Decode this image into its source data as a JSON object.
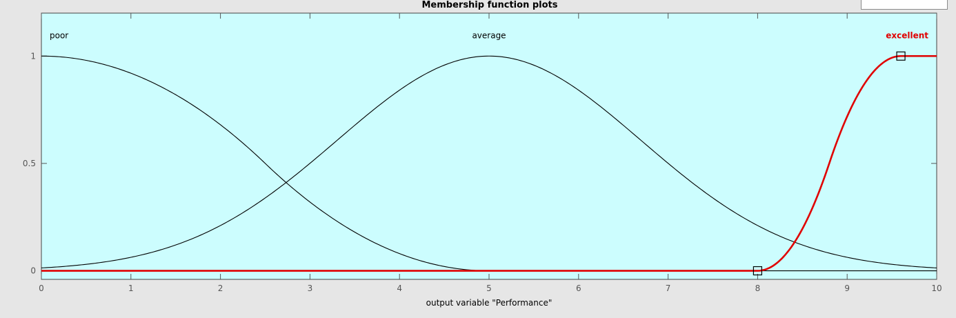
{
  "title": "Membership function plots",
  "colors": {
    "axes_background": "#ccfdfe",
    "figure_background": "#e6e6e6",
    "curve": "#000000",
    "selected_curve": "#e00000"
  },
  "chart_data": {
    "type": "line",
    "title": "Membership function plots",
    "xlabel": "output variable \"Performance\"",
    "ylabel": "",
    "xlim": [
      0,
      10
    ],
    "ylim": [
      -0.04,
      1.2
    ],
    "xticks": [
      "0",
      "1",
      "2",
      "3",
      "4",
      "5",
      "6",
      "7",
      "8",
      "9",
      "10"
    ],
    "yticks": [
      "0",
      "0.5",
      "1"
    ],
    "ytick_values": [
      0,
      0.5,
      1
    ],
    "grid": false,
    "series": [
      {
        "name": "poor",
        "shape": "z-shaped",
        "params": [
          0,
          5
        ],
        "selected": false
      },
      {
        "name": "average",
        "shape": "gaussian",
        "params": [
          1.7,
          5
        ],
        "selected": false
      },
      {
        "name": "excellent",
        "shape": "s-shaped",
        "params": [
          8,
          9.6
        ],
        "selected": true
      }
    ]
  }
}
